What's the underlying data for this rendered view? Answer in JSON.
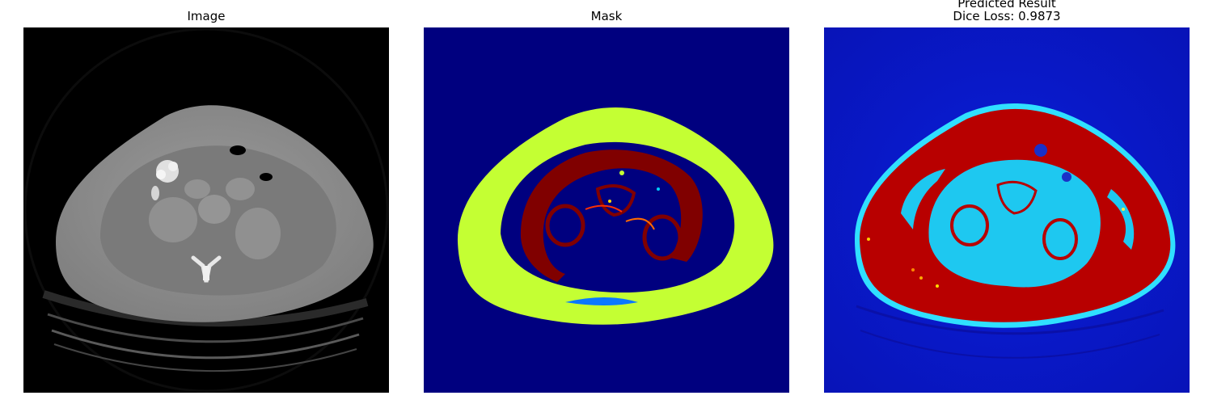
{
  "panels": [
    {
      "id": "image",
      "title": "Image"
    },
    {
      "id": "mask",
      "title": "Mask"
    },
    {
      "id": "prediction",
      "title_line1": "Predicted Result",
      "title_line2": "Dice Loss: 0.9873"
    }
  ],
  "colors": {
    "background": "#ffffff",
    "ct_background": "#000000",
    "ct_body": "#8a8a8a",
    "mask_background": "#00007f",
    "mask_subcutaneous_fat": "#c4ff33",
    "mask_muscle": "#800000",
    "mask_visceral": "#00007f",
    "pred_background": "#0a1ed8",
    "pred_body": "#b80000",
    "pred_inner": "#1ec8f0"
  }
}
